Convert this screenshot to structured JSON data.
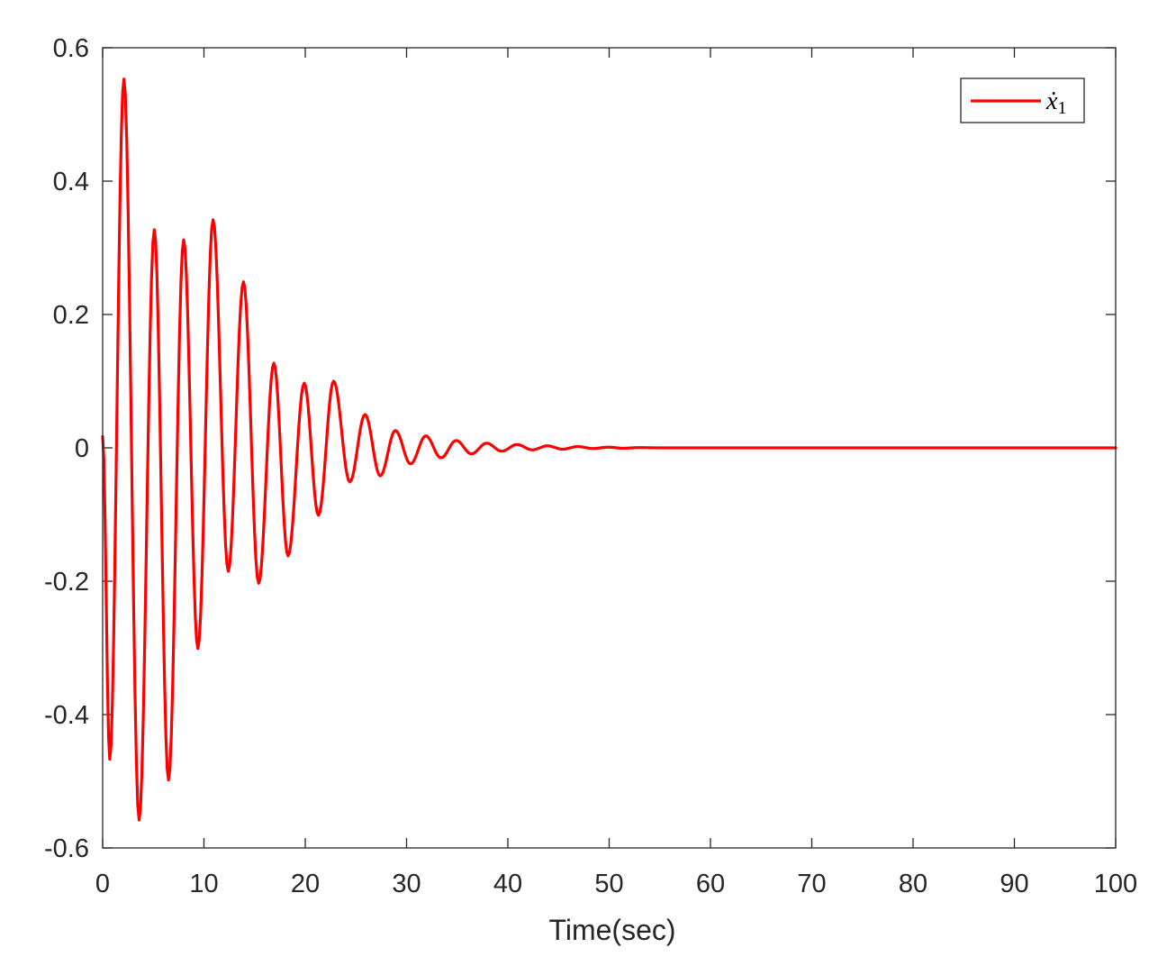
{
  "chart_data": {
    "type": "line",
    "title": "",
    "xlabel": "Time(sec)",
    "ylabel": "",
    "xlim": [
      0,
      100
    ],
    "ylim": [
      -0.6,
      0.6
    ],
    "xticks": [
      0,
      10,
      20,
      30,
      40,
      50,
      60,
      70,
      80,
      90,
      100
    ],
    "xtick_labels": [
      "0",
      "10",
      "20",
      "30",
      "40",
      "50",
      "60",
      "70",
      "80",
      "90",
      "100"
    ],
    "yticks": [
      0.6,
      0.4,
      0.2,
      0,
      -0.2,
      -0.4,
      -0.6
    ],
    "ytick_labels": [
      "0.6",
      "0.4",
      "0.2",
      "0",
      "-0.2",
      "-0.4",
      "-0.6"
    ],
    "grid": false,
    "legend_position": "upper right",
    "series": [
      {
        "name": "x1_dot",
        "legend_label": "ẋ",
        "legend_subscript": "1",
        "color": "#ff0000",
        "x": [
          0,
          0.7,
          2.1,
          3.6,
          5.1,
          6.5,
          8.0,
          9.4,
          10.9,
          12.4,
          13.9,
          15.4,
          16.9,
          18.3,
          19.9,
          21.3,
          22.8,
          24.4,
          25.9,
          27.4,
          28.9,
          30.4,
          31.9,
          33.4,
          34.9,
          36.4,
          37.9,
          39.4,
          40.9,
          42.4,
          43.9,
          45.4,
          46.9,
          48.4,
          49.9,
          51.4,
          52.9,
          55,
          60,
          70,
          80,
          90,
          100
        ],
        "y": [
          0.017,
          -0.467,
          0.553,
          -0.558,
          0.327,
          -0.498,
          0.312,
          -0.301,
          0.342,
          -0.185,
          0.249,
          -0.203,
          0.127,
          -0.162,
          0.097,
          -0.101,
          0.1,
          -0.051,
          0.05,
          -0.042,
          0.026,
          -0.024,
          0.018,
          -0.015,
          0.011,
          -0.009,
          0.007,
          -0.005,
          0.005,
          -0.003,
          0.003,
          -0.002,
          0.002,
          -0.001,
          0.001,
          -0.0006,
          0.0004,
          0,
          0,
          0,
          0,
          0,
          0
        ]
      }
    ]
  },
  "axes": {
    "xlabel": "Time(sec)"
  },
  "legend": {
    "label_main": "ẋ",
    "label_sub": "1"
  }
}
